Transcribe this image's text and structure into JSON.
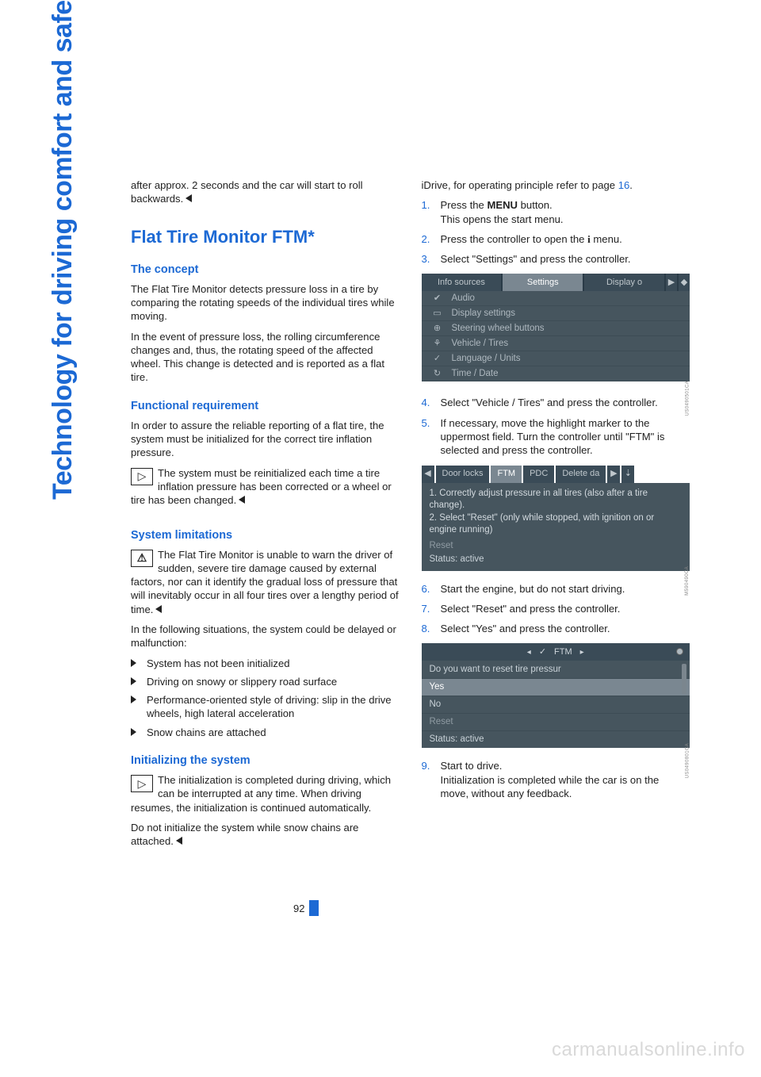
{
  "sideHeading": "Technology for driving comfort and safety",
  "watermark": "carmanualsonline.info",
  "pageNumber": "92",
  "left": {
    "intro": "after approx. 2 seconds and the car will start to roll backwards.",
    "h2": "Flat Tire Monitor FTM*",
    "concept": {
      "title": "The concept",
      "p1": "The Flat Tire Monitor detects pressure loss in a tire by comparing the rotating speeds of the individual tires while moving.",
      "p2": "In the event of pressure loss, the rolling circumference changes and, thus, the rotating speed of the affected wheel. This change is detected and is reported as a flat tire."
    },
    "func": {
      "title": "Functional requirement",
      "p1": "In order to assure the reliable reporting of a flat tire, the system must be initialized for the correct tire inflation pressure.",
      "note": "The system must be reinitialized each time a tire inflation pressure has been corrected or a wheel or tire has been changed."
    },
    "limits": {
      "title": "System limitations",
      "note": "The Flat Tire Monitor is unable to warn the driver of sudden, severe tire damage caused by external factors, nor can it identify the gradual loss of pressure that will inevitably occur in all four tires over a lengthy period of time.",
      "p1": "In the following situations, the system could be delayed or malfunction:",
      "bullets": [
        "System has not been initialized",
        "Driving on snowy or slippery road surface",
        "Performance-oriented style of driving: slip in the drive wheels, high lateral acceleration",
        "Snow chains are attached"
      ]
    },
    "init": {
      "title": "Initializing the system",
      "note": "The initialization is completed during driving, which can be interrupted at any time. When driving resumes, the initialization is continued automatically.",
      "p1": "Do not initialize the system while snow chains are attached."
    }
  },
  "right": {
    "intro_a": "iDrive, for operating principle refer to page ",
    "intro_link": "16",
    "intro_b": ".",
    "steps_a": [
      {
        "n": "1.",
        "t1": "Press the ",
        "bold": "MENU",
        "t2": " button.",
        "sub": "This opens the start menu."
      },
      {
        "n": "2.",
        "t1": "Press the controller to open the ",
        "iicon": "i",
        "t2": " menu."
      },
      {
        "n": "3.",
        "t1": "Select \"Settings\" and press the controller."
      }
    ],
    "fig1_caption": "US0490501CA",
    "fig1": {
      "tabs": [
        "Info sources",
        "Settings",
        "Display o"
      ],
      "menu": [
        {
          "icon": "✔",
          "label": "Audio"
        },
        {
          "icon": "▭",
          "label": "Display settings"
        },
        {
          "icon": "⊕",
          "label": "Steering wheel buttons"
        },
        {
          "icon": "⚘",
          "label": "Vehicle / Tires"
        },
        {
          "icon": "✓",
          "label": "Language / Units"
        },
        {
          "icon": "↻",
          "label": "Time / Date"
        }
      ]
    },
    "steps_b": [
      {
        "n": "4.",
        "t": "Select \"Vehicle / Tires\" and press the controller."
      },
      {
        "n": "5.",
        "t": "If necessary, move the highlight marker to the uppermost field. Turn the controller until \"FTM\" is selected and press the controller."
      }
    ],
    "fig2_caption": "M590490CA",
    "fig2": {
      "tabs_left": "Door locks",
      "tabs_active": "FTM",
      "tabs_r1": "PDC",
      "tabs_r2": "Delete da",
      "body1": "1. Correctly adjust pressure in all tires (also after a tire change).",
      "body2": "2. Select \"Reset\" (only while stopped, with ignition on or engine running)",
      "reset": "Reset",
      "status": "Status:  active"
    },
    "steps_c": [
      {
        "n": "6.",
        "t": "Start the engine, but do not start driving."
      },
      {
        "n": "7.",
        "t": "Select \"Reset\" and press the controller."
      },
      {
        "n": "8.",
        "t": "Select \"Yes\" and press the controller."
      }
    ],
    "fig3_caption": "US0490801CA",
    "fig3": {
      "title": "FTM",
      "q": "Do you want to reset tire pressur",
      "yes": "Yes",
      "no": "No",
      "reset": "Reset",
      "status": "Status:  active"
    },
    "steps_d": [
      {
        "n": "9.",
        "t": "Start to drive.",
        "sub": "Initialization is completed while the car is on the move, without any feedback."
      }
    ]
  }
}
